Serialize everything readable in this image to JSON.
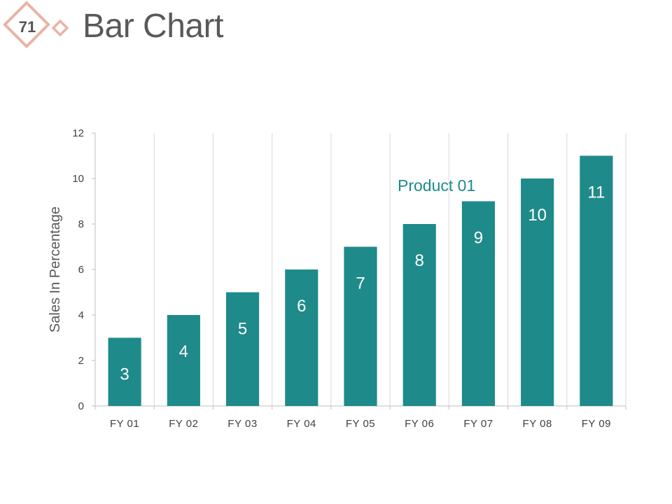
{
  "slide": {
    "number": "71",
    "title": "Bar Chart",
    "badge_color": "#e8b4a6"
  },
  "chart_data": {
    "type": "bar",
    "categories": [
      "FY 01",
      "FY 02",
      "FY 03",
      "FY 04",
      "FY 05",
      "FY 06",
      "FY 07",
      "FY 08",
      "FY 09"
    ],
    "series": [
      {
        "name": "Product 01",
        "values": [
          3,
          4,
          5,
          6,
          7,
          8,
          9,
          10,
          11
        ]
      }
    ],
    "title": "",
    "xlabel": "",
    "ylabel": "Sales In Percentage",
    "ylim": [
      0,
      12
    ],
    "yticks": [
      0,
      2,
      4,
      6,
      8,
      10,
      12
    ],
    "grid": "vertical",
    "legend": "none",
    "data_labels": true,
    "bar_color": "#1f8a8a",
    "series_label_color": "#1f8a8a"
  }
}
